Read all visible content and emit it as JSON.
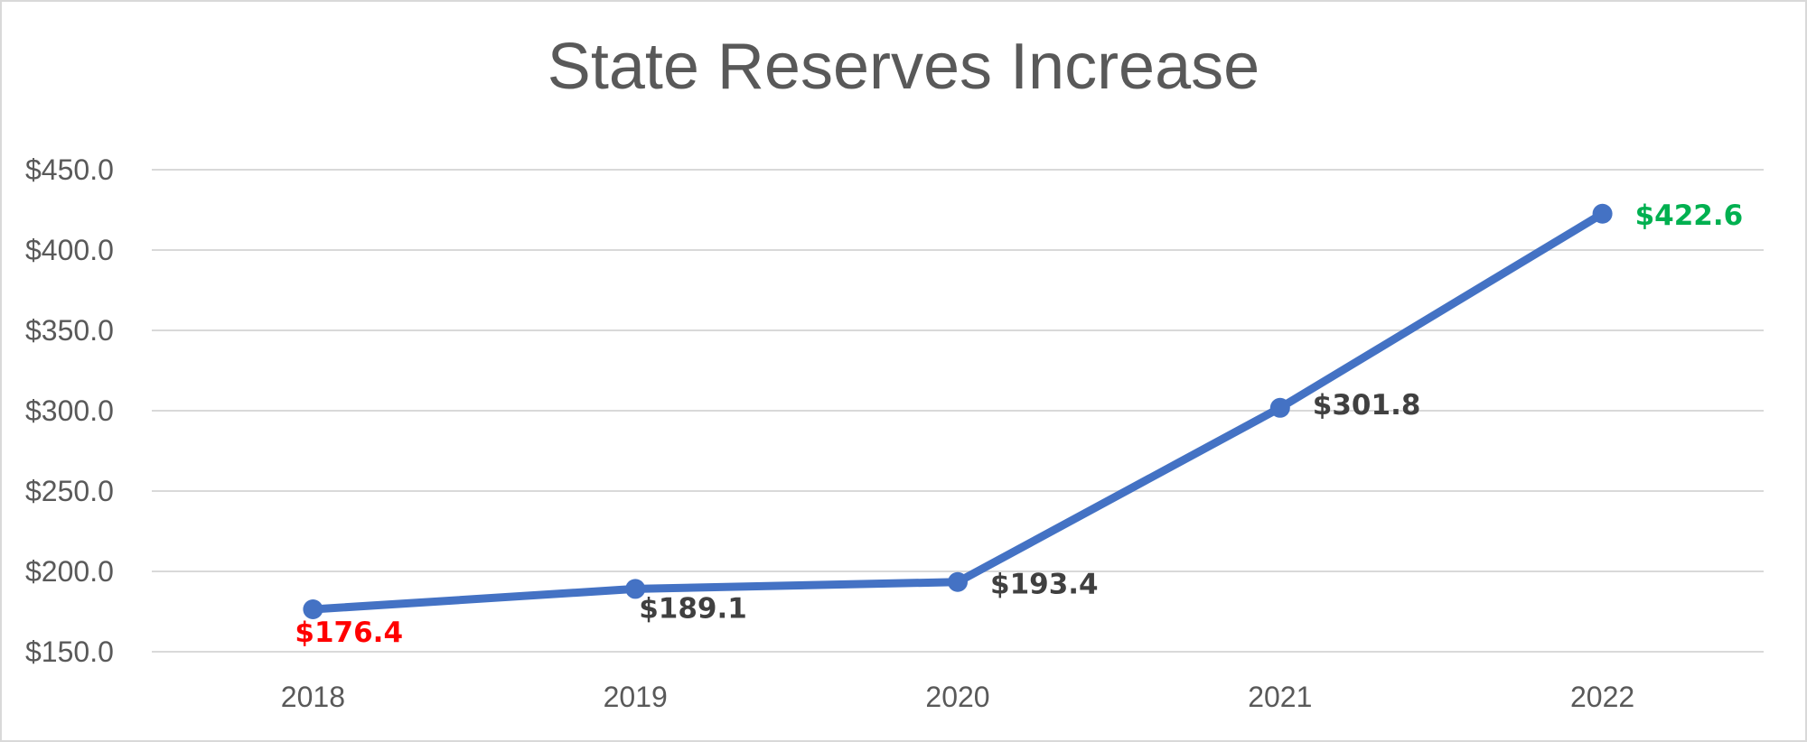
{
  "chart_data": {
    "type": "line",
    "title": "State Reserves Increase",
    "categories": [
      "2018",
      "2019",
      "2020",
      "2021",
      "2022"
    ],
    "series": [
      {
        "values": [
          176.4,
          189.1,
          193.4,
          301.8,
          422.6
        ],
        "color": "#4472c4"
      }
    ],
    "data_labels": [
      "$176.4",
      "$189.1",
      "$193.4",
      "$301.8",
      "$422.6"
    ],
    "data_label_colors": [
      "#ff0000",
      "#404040",
      "#404040",
      "#404040",
      "#00b050"
    ],
    "y_ticks": [
      150,
      200,
      250,
      300,
      350,
      400,
      450
    ],
    "y_tick_labels": [
      "$150.0",
      "$200.0",
      "$250.0",
      "$300.0",
      "$350.0",
      "$400.0",
      "$450.0"
    ],
    "ylim": [
      150,
      450
    ],
    "grid": true,
    "legend": "none"
  }
}
